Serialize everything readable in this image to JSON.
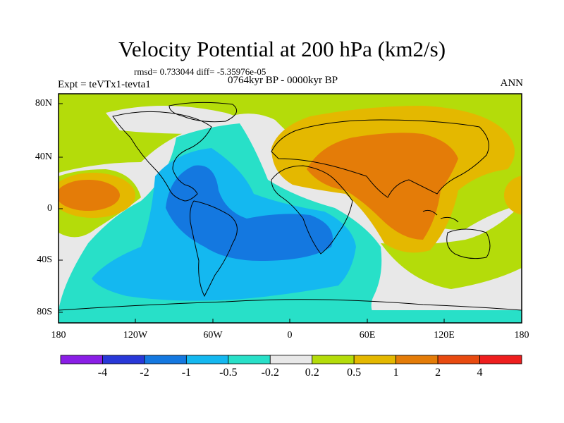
{
  "header": {
    "title": "Velocity Potential at 200 hPa (km2/s)",
    "stats": "rmsd= 0.733044 diff= -5.35976e-05",
    "period": "0764kyr BP - 0000kyr BP",
    "experiment": "Expt = teVTx1-tevta1",
    "season": "ANN"
  },
  "axes": {
    "lat_labels": [
      "80N",
      "40N",
      "0",
      "40S",
      "80S"
    ],
    "lon_labels": [
      "180",
      "120W",
      "60W",
      "0",
      "60E",
      "120E",
      "180"
    ]
  },
  "colorbar": {
    "labels": [
      "-4",
      "-2",
      "-1",
      "-0.5",
      "-0.2",
      "0.2",
      "0.5",
      "1",
      "2",
      "4"
    ],
    "colors": [
      "#8a1ee6",
      "#2838d8",
      "#1478e0",
      "#14b8f0",
      "#28e0c8",
      "#e8e8e8",
      "#b4dc0a",
      "#e4b800",
      "#e47c08",
      "#e84a10",
      "#ee1e1e"
    ]
  },
  "palette": {
    "land_outline": "#000000",
    "frame": "#000000"
  }
}
